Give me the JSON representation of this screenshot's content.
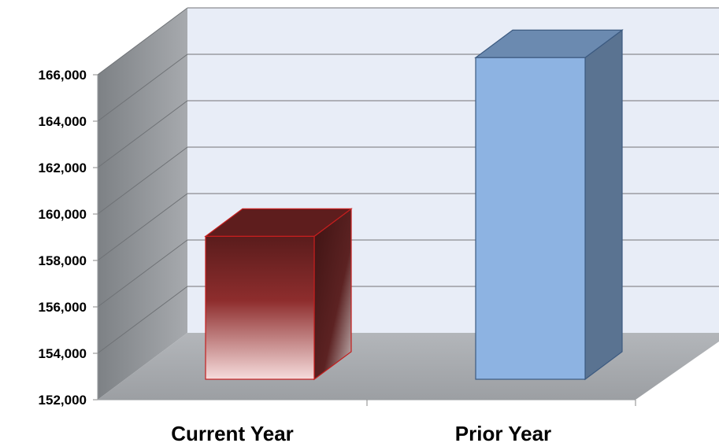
{
  "chart_data": {
    "type": "bar",
    "style": "3d-column",
    "title": "",
    "xlabel": "",
    "ylabel": "",
    "categories": [
      "Current Year",
      "Prior Year"
    ],
    "values": [
      157800,
      165500
    ],
    "ylim": [
      152000,
      166000
    ],
    "yticks": [
      152000,
      154000,
      156000,
      158000,
      160000,
      162000,
      164000,
      166000
    ],
    "ytick_labels": [
      "152,000",
      "154,000",
      "156,000",
      "158,000",
      "160,000",
      "162,000",
      "164,000",
      "166,000"
    ],
    "grid": true,
    "legend": "none",
    "colors": {
      "current_year": "#8b2a2a",
      "prior_year": "#8db3e2",
      "back_wall": "#e8edf7",
      "side_wall": "#8c8f93",
      "floor": "#a9acb0"
    }
  }
}
